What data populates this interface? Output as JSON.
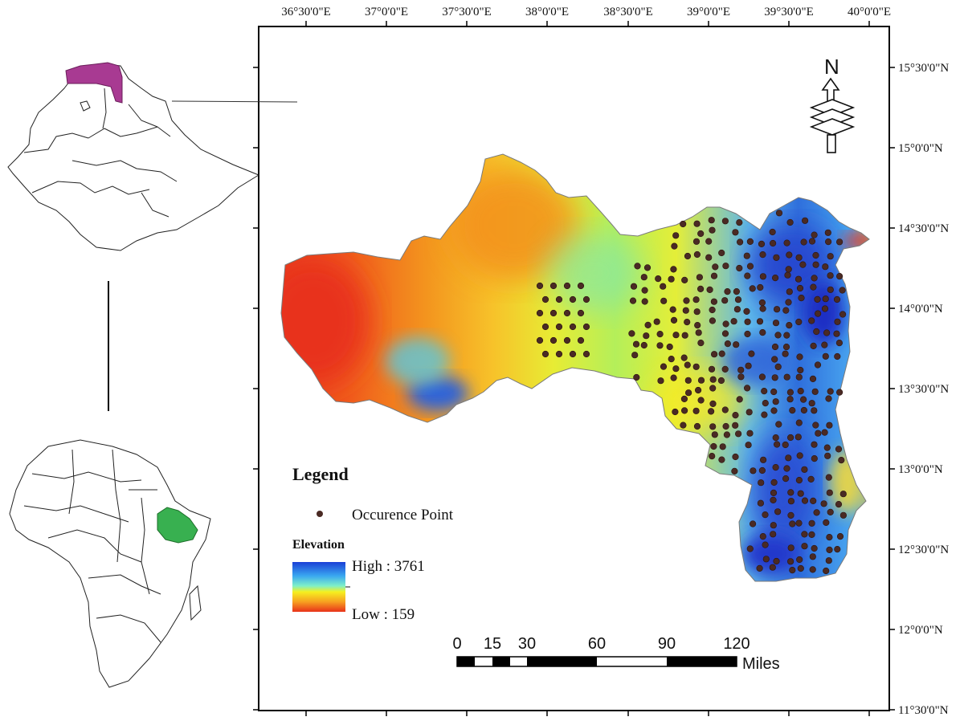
{
  "map": {
    "lon_labels": [
      "36°30'0\"E",
      "37°0'0\"E",
      "37°30'0\"E",
      "38°0'0\"E",
      "38°30'0\"E",
      "39°0'0\"E",
      "39°30'0\"E",
      "40°0'0\"E"
    ],
    "lat_labels": [
      "15°30'0\"N",
      "15°0'0\"N",
      "14°30'0\"N",
      "14°0'0\"N",
      "13°30'0\"N",
      "13°0'0\"N",
      "12°30'0\"N",
      "12°0'0\"N",
      "11°30'0\"N"
    ],
    "legend": {
      "title": "Legend",
      "point_label": "Occurence Point",
      "elevation_title": "Elevation",
      "high_label": "High : 3761",
      "low_label": "Low : 159"
    },
    "scale": {
      "labels": [
        "0",
        "15",
        "30",
        "60",
        "90",
        "120"
      ],
      "unit": "Miles"
    },
    "north_label": "N",
    "colors": {
      "low": "#e8321a",
      "mid": "#f5ea20",
      "high": "#1f3fd0",
      "point": "#4a2a24",
      "ethiopia_region": "#a83a92",
      "africa_ethiopia": "#38b050"
    }
  }
}
